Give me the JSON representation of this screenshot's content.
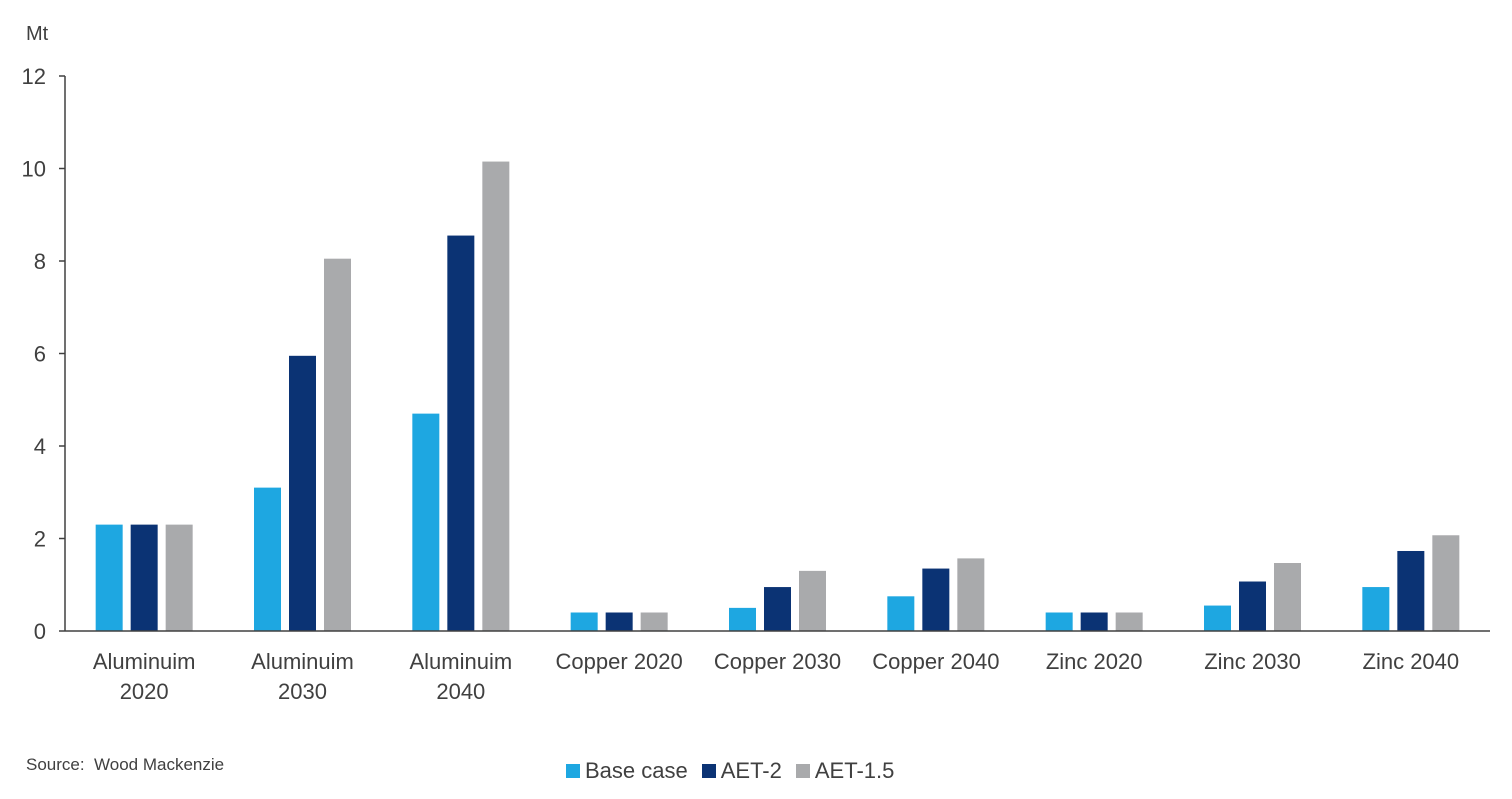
{
  "source_note": "Source:  Wood Mackenzie",
  "colors": {
    "base": "#1ea7e1",
    "aet2": "#0b3374",
    "aet15": "#a9aaac"
  },
  "chart_data": {
    "type": "bar",
    "title": "",
    "ylabel": "Mt",
    "xlabel": "",
    "ylim": [
      0,
      12
    ],
    "yticks": [
      0,
      2,
      4,
      6,
      8,
      10,
      12
    ],
    "grid": false,
    "legend_position": "bottom",
    "categories": [
      [
        "Aluminuim",
        "2020"
      ],
      [
        "Aluminuim",
        "2030"
      ],
      [
        "Aluminuim",
        "2040"
      ],
      [
        "Copper 2020"
      ],
      [
        "Copper 2030"
      ],
      [
        "Copper 2040"
      ],
      [
        "Zinc 2020"
      ],
      [
        "Zinc 2030"
      ],
      [
        "Zinc 2040"
      ]
    ],
    "series": [
      {
        "name": "Base case",
        "color": "#1ea7e1",
        "values": [
          2.3,
          3.1,
          4.7,
          0.4,
          0.5,
          0.75,
          0.4,
          0.55,
          0.95
        ]
      },
      {
        "name": "AET-2",
        "color": "#0b3374",
        "values": [
          2.3,
          5.95,
          8.55,
          0.4,
          0.95,
          1.35,
          0.4,
          1.07,
          1.73
        ]
      },
      {
        "name": "AET-1.5",
        "color": "#a9aaac",
        "values": [
          2.3,
          8.05,
          10.15,
          0.4,
          1.3,
          1.57,
          0.4,
          1.47,
          2.07
        ]
      }
    ]
  }
}
